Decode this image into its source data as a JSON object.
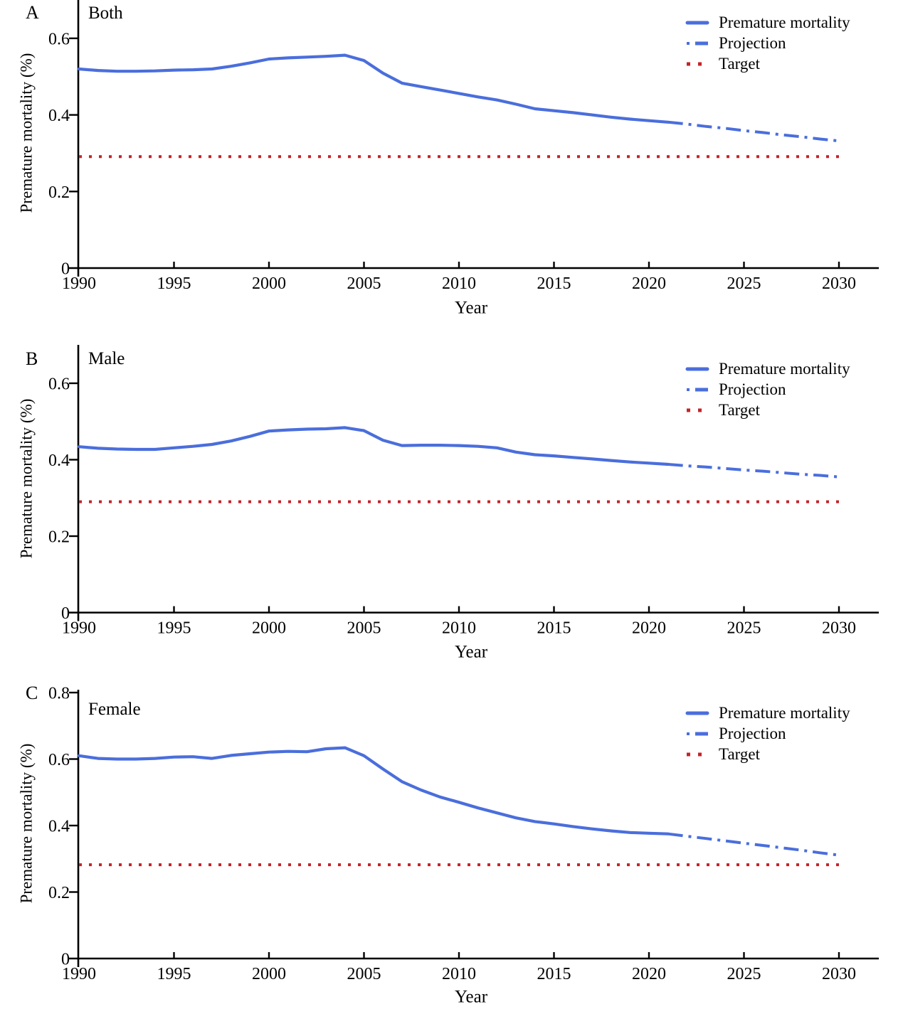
{
  "figure": {
    "colors": {
      "line_blue": "#4A6EDC",
      "target_red": "#C42329",
      "axis_black": "#000000"
    },
    "x_axis_title": "Year",
    "y_axis_title": "Premature mortality (%)"
  },
  "chart_data": [
    {
      "type": "line",
      "panel_label": "A",
      "title": "Both",
      "xlabel": "Year",
      "ylabel": "Premature mortality (%)",
      "xlim": [
        1990,
        2032
      ],
      "ylim": [
        0,
        0.7
      ],
      "grid": false,
      "legend_position": "top-right",
      "xtick_values": [
        1990,
        1995,
        2000,
        2005,
        2010,
        2015,
        2020,
        2025,
        2030
      ],
      "xtick_labels": [
        "1990",
        "1995",
        "2000",
        "2005",
        "2010",
        "2015",
        "2020",
        "2025",
        "2030"
      ],
      "ytick_values": [
        0,
        0.2,
        0.4,
        0.6
      ],
      "ytick_labels": [
        "0",
        "0.2",
        "0.4",
        "0.6"
      ],
      "legend": [
        "Premature mortality",
        "Projection",
        "Target"
      ],
      "series": [
        {
          "name": "Premature mortality",
          "style": "solid",
          "color": "#4A6EDC",
          "x_start": 1990,
          "values": [
            0.52,
            0.516,
            0.514,
            0.514,
            0.515,
            0.517,
            0.518,
            0.52,
            0.527,
            0.536,
            0.546,
            0.549,
            0.551,
            0.553,
            0.556,
            0.542,
            0.509,
            0.483,
            0.474,
            0.465,
            0.456,
            0.447,
            0.439,
            0.428,
            0.416,
            0.411,
            0.406,
            0.4,
            0.394,
            0.389,
            0.385,
            0.381
          ]
        },
        {
          "name": "Projection",
          "style": "dashdot",
          "color": "#4A6EDC",
          "x_start": 2021,
          "values": [
            0.381,
            0.376,
            0.37,
            0.365,
            0.359,
            0.354,
            0.348,
            0.343,
            0.337,
            0.332
          ]
        },
        {
          "name": "Target",
          "style": "dotted",
          "color": "#C42329",
          "x_start": 1990,
          "x_end": 2030,
          "value": 0.291
        }
      ]
    },
    {
      "type": "line",
      "panel_label": "B",
      "title": "Male",
      "xlabel": "Year",
      "ylabel": "Premature mortality (%)",
      "xlim": [
        1990,
        2032
      ],
      "ylim": [
        0,
        0.7
      ],
      "grid": false,
      "legend_position": "top-right",
      "xtick_values": [
        1990,
        1995,
        2000,
        2005,
        2010,
        2015,
        2020,
        2025,
        2030
      ],
      "xtick_labels": [
        "1990",
        "1995",
        "2000",
        "2005",
        "2010",
        "2015",
        "2020",
        "2025",
        "2030"
      ],
      "ytick_values": [
        0,
        0.2,
        0.4,
        0.6
      ],
      "ytick_labels": [
        "0",
        "0.2",
        "0.4",
        "0.6"
      ],
      "legend": [
        "Premature mortality",
        "Projection",
        "Target"
      ],
      "series": [
        {
          "name": "Premature mortality",
          "style": "solid",
          "color": "#4A6EDC",
          "x_start": 1990,
          "values": [
            0.434,
            0.43,
            0.428,
            0.427,
            0.427,
            0.431,
            0.435,
            0.44,
            0.449,
            0.461,
            0.475,
            0.478,
            0.48,
            0.481,
            0.484,
            0.476,
            0.451,
            0.437,
            0.438,
            0.438,
            0.437,
            0.435,
            0.431,
            0.42,
            0.413,
            0.41,
            0.406,
            0.402,
            0.398,
            0.394,
            0.391,
            0.388
          ]
        },
        {
          "name": "Projection",
          "style": "dashdot",
          "color": "#4A6EDC",
          "x_start": 2021,
          "values": [
            0.388,
            0.384,
            0.381,
            0.377,
            0.373,
            0.37,
            0.366,
            0.362,
            0.359,
            0.355
          ]
        },
        {
          "name": "Target",
          "style": "dotted",
          "color": "#C42329",
          "x_start": 1990,
          "x_end": 2030,
          "value": 0.29
        }
      ]
    },
    {
      "type": "line",
      "panel_label": "C",
      "title": "Female",
      "xlabel": "Year",
      "ylabel": "Premature mortality (%)",
      "xlim": [
        1990,
        2032
      ],
      "ylim": [
        0,
        0.8
      ],
      "grid": false,
      "legend_position": "top-right",
      "xtick_values": [
        1990,
        1995,
        2000,
        2005,
        2010,
        2015,
        2020,
        2025,
        2030
      ],
      "xtick_labels": [
        "1990",
        "1995",
        "2000",
        "2005",
        "2010",
        "2015",
        "2020",
        "2025",
        "2030"
      ],
      "ytick_values": [
        0,
        0.2,
        0.4,
        0.6,
        0.8
      ],
      "ytick_labels": [
        "0",
        "0.2",
        "0.4",
        "0.6",
        "0.8"
      ],
      "legend": [
        "Premature mortality",
        "Projection",
        "Target"
      ],
      "series": [
        {
          "name": "Premature mortality",
          "style": "solid",
          "color": "#4A6EDC",
          "x_start": 1990,
          "values": [
            0.61,
            0.602,
            0.6,
            0.6,
            0.602,
            0.606,
            0.607,
            0.602,
            0.611,
            0.616,
            0.621,
            0.623,
            0.622,
            0.631,
            0.634,
            0.61,
            0.57,
            0.532,
            0.507,
            0.486,
            0.47,
            0.453,
            0.438,
            0.423,
            0.412,
            0.405,
            0.397,
            0.39,
            0.384,
            0.379,
            0.377,
            0.375
          ]
        },
        {
          "name": "Projection",
          "style": "dashdot",
          "color": "#4A6EDC",
          "x_start": 2021,
          "values": [
            0.375,
            0.368,
            0.361,
            0.354,
            0.347,
            0.34,
            0.333,
            0.326,
            0.318,
            0.311
          ]
        },
        {
          "name": "Target",
          "style": "dotted",
          "color": "#C42329",
          "x_start": 1990,
          "x_end": 2030,
          "value": 0.282
        }
      ]
    }
  ]
}
